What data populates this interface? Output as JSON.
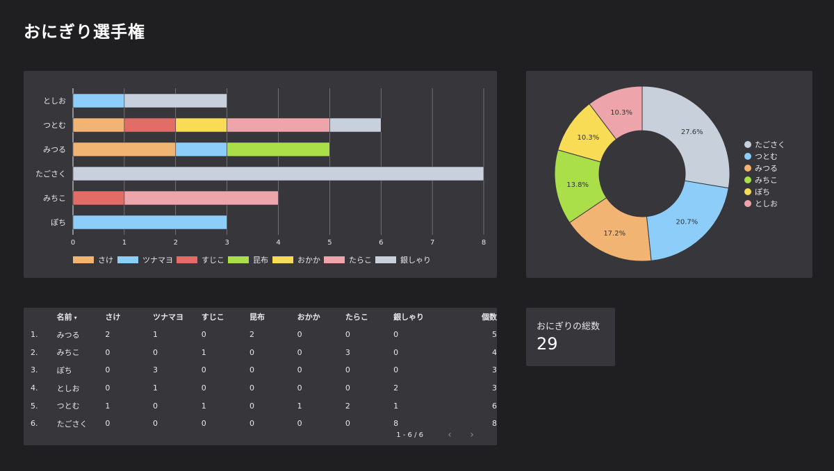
{
  "page": {
    "title": "おにぎり選手権"
  },
  "colors": {
    "さけ": "#f2b472",
    "ツナマヨ": "#8ccdfa",
    "すじこ": "#e26d66",
    "昆布": "#aadf4a",
    "おかか": "#f8dc55",
    "たらこ": "#eea4ab",
    "銀しゃり": "#c8d0dc"
  },
  "bar_chart": {
    "chart_data": {
      "type": "bar",
      "orientation": "horizontal",
      "stacked": true,
      "categories": [
        "としお",
        "つとむ",
        "みつる",
        "たごさく",
        "みちこ",
        "ぽち"
      ],
      "series": [
        {
          "name": "さけ",
          "values": [
            0,
            1,
            2,
            0,
            0,
            0
          ]
        },
        {
          "name": "ツナマヨ",
          "values": [
            1,
            0,
            1,
            0,
            0,
            3
          ]
        },
        {
          "name": "すじこ",
          "values": [
            0,
            1,
            0,
            0,
            1,
            0
          ]
        },
        {
          "name": "昆布",
          "values": [
            0,
            0,
            2,
            0,
            0,
            0
          ]
        },
        {
          "name": "おかか",
          "values": [
            0,
            1,
            0,
            0,
            0,
            0
          ]
        },
        {
          "name": "たらこ",
          "values": [
            0,
            2,
            0,
            0,
            3,
            0
          ]
        },
        {
          "name": "銀しゃり",
          "values": [
            2,
            1,
            0,
            8,
            0,
            0
          ]
        }
      ],
      "xlim": [
        0,
        8
      ],
      "xticks": [
        "0",
        "1",
        "2",
        "3",
        "4",
        "5",
        "6",
        "7",
        "8"
      ],
      "grid": true,
      "legend": "bottom"
    }
  },
  "pie_chart": {
    "chart_data": {
      "type": "pie",
      "donut": true,
      "labels": [
        "たごさく",
        "つとむ",
        "みつる",
        "みちこ",
        "ぽち",
        "としお"
      ],
      "values": [
        27.6,
        20.7,
        17.2,
        13.8,
        10.3,
        10.3
      ],
      "value_labels": [
        "27.6%",
        "20.7%",
        "17.2%",
        "13.8%",
        "10.3%",
        "10.3%"
      ],
      "colors": [
        "#c8d0dc",
        "#8ccdfa",
        "#f2b472",
        "#aadf4a",
        "#f8dc55",
        "#eea4ab"
      ],
      "legend": "right"
    }
  },
  "table": {
    "headers": [
      "名前",
      "さけ",
      "ツナマヨ",
      "すじこ",
      "昆布",
      "おかか",
      "たらこ",
      "銀しゃり",
      "個数"
    ],
    "rows": [
      [
        "1.",
        "みつる",
        "2",
        "1",
        "0",
        "2",
        "0",
        "0",
        "0",
        "5"
      ],
      [
        "2.",
        "みちこ",
        "0",
        "0",
        "1",
        "0",
        "0",
        "3",
        "0",
        "4"
      ],
      [
        "3.",
        "ぽち",
        "0",
        "3",
        "0",
        "0",
        "0",
        "0",
        "0",
        "3"
      ],
      [
        "4.",
        "としお",
        "0",
        "1",
        "0",
        "0",
        "0",
        "0",
        "2",
        "3"
      ],
      [
        "5.",
        "つとむ",
        "1",
        "0",
        "1",
        "0",
        "1",
        "2",
        "1",
        "6"
      ],
      [
        "6.",
        "たごさく",
        "0",
        "0",
        "0",
        "0",
        "0",
        "0",
        "8",
        "8"
      ]
    ],
    "sort_indicator": "▾",
    "pagination": {
      "range": "1 - 6 / 6",
      "prev_icon": "‹",
      "next_icon": "›"
    }
  },
  "kpi": {
    "label": "おにぎりの総数",
    "value": "29"
  }
}
